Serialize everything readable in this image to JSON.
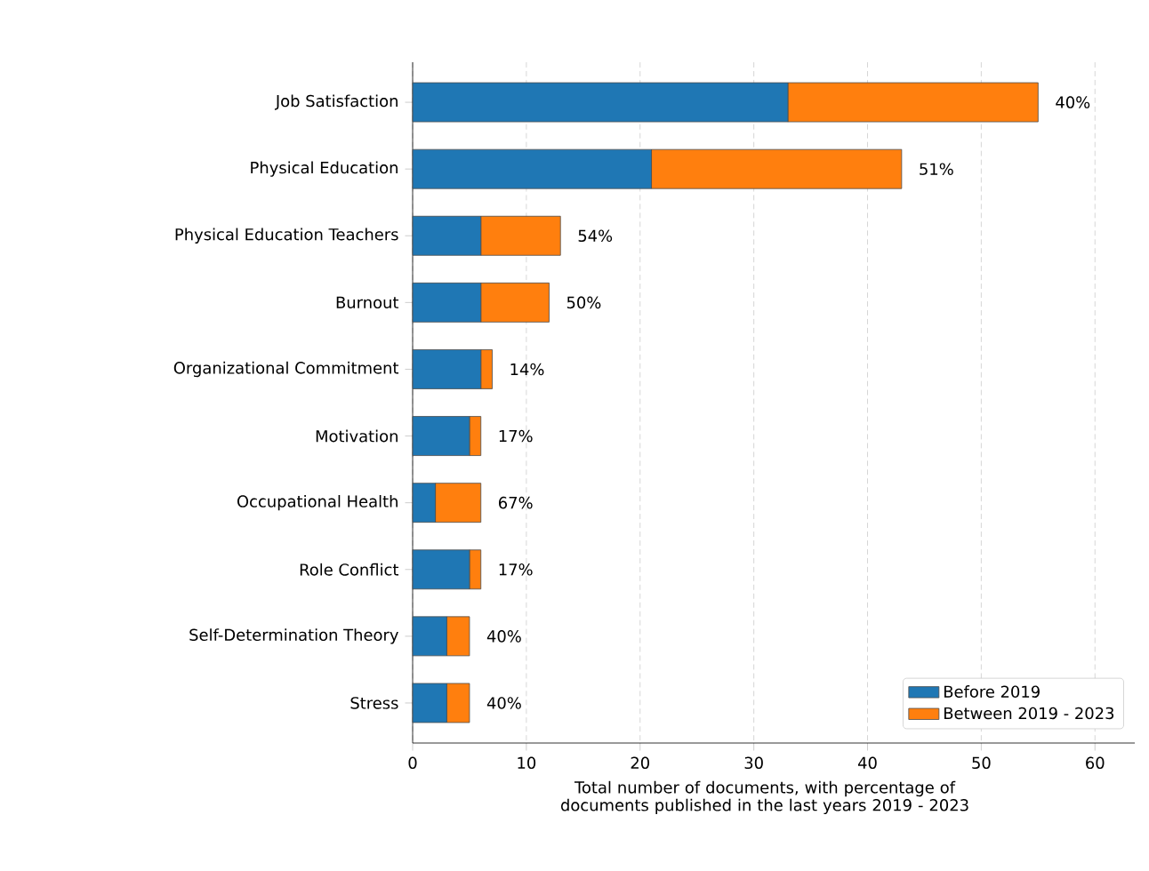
{
  "chart_data": {
    "type": "bar",
    "orientation": "horizontal",
    "stacked": true,
    "xlabel": "Total number of documents, with percentage of documents published in the last years 2019 - 2023",
    "categories": [
      "Job Satisfaction",
      "Physical Education",
      "Physical Education Teachers",
      "Burnout",
      "Organizational Commitment",
      "Motivation",
      "Occupational Health",
      "Role Conflict",
      "Self-Determination Theory",
      "Stress"
    ],
    "series": [
      {
        "name": "Before 2019",
        "color": "#1f77b4",
        "values": [
          33,
          21,
          6,
          6,
          6,
          5,
          2,
          5,
          3,
          3
        ]
      },
      {
        "name": "Between 2019 - 2023",
        "color": "#ff7f0e",
        "values": [
          22,
          22,
          7,
          6,
          1,
          1,
          4,
          1,
          2,
          2
        ]
      }
    ],
    "annotations": [
      {
        "text": "40%",
        "x": 55,
        "y": "Job Satisfaction"
      },
      {
        "text": "51%",
        "x": 43,
        "y": "Physical Education"
      },
      {
        "text": "54%",
        "x": 13,
        "y": "Physical Education Teachers"
      },
      {
        "text": "50%",
        "x": 12,
        "y": "Burnout"
      },
      {
        "text": "14%",
        "x": 7,
        "y": "Organizational Commitment"
      },
      {
        "text": "17%",
        "x": 6,
        "y": "Motivation"
      },
      {
        "text": "67%",
        "x": 6,
        "y": "Occupational Health"
      },
      {
        "text": "17%",
        "x": 6,
        "y": "Role Conflict"
      },
      {
        "text": "40%",
        "x": 5,
        "y": "Self-Determination Theory"
      },
      {
        "text": "40%",
        "x": 5,
        "y": "Stress"
      }
    ],
    "xlim": [
      0,
      63.5
    ],
    "xticks": [
      0,
      10,
      20,
      30,
      40,
      50,
      60
    ],
    "grid": "x",
    "legend": "bottom right"
  }
}
